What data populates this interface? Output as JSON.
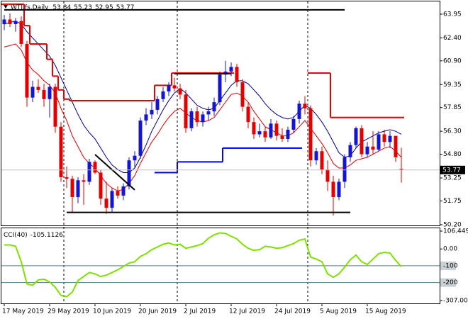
{
  "chart_data": [
    {
      "type": "candlestick",
      "title": "WTI.fs,Daily",
      "categories": [
        "17 May 2019",
        null,
        null,
        null,
        null,
        null,
        null,
        null,
        "29 May 2019",
        null,
        null,
        null,
        null,
        null,
        null,
        null,
        "10 Jun 2019",
        null,
        null,
        null,
        null,
        null,
        null,
        null,
        "20 Jun 2019",
        null,
        null,
        null,
        null,
        null,
        null,
        null,
        "2 Jul 2019",
        null,
        null,
        null,
        null,
        null,
        null,
        null,
        "12 Jul 2019",
        null,
        null,
        null,
        null,
        null,
        null,
        null,
        "24 Jul 2019",
        null,
        null,
        null,
        null,
        null,
        null,
        null,
        "5 Aug 2019",
        null,
        null,
        null,
        null,
        null,
        null,
        null,
        "15 Aug 2019",
        null,
        null,
        null,
        null,
        null,
        null
      ],
      "open": [
        63.3,
        63.6,
        63.3,
        63.5,
        62.0,
        58.5,
        59.2,
        59.0,
        58.4,
        59.2,
        56.6,
        53.3,
        53.2,
        52.0,
        53.1,
        53.0,
        54.3,
        53.6,
        51.9,
        51.3,
        52.4,
        52.1,
        52.7,
        54.4,
        54.7,
        57.0,
        57.4,
        57.7,
        58.4,
        58.9,
        59.3,
        59.1,
        58.7,
        56.5,
        57.6,
        56.9,
        57.4,
        57.6,
        58.2,
        60.0,
        60.2,
        60.5,
        59.5,
        57.9,
        56.9,
        56.1,
        56.3,
        55.9,
        56.8,
        56.0,
        55.8,
        56.4,
        57.1,
        58.1,
        57.8,
        54.4,
        55.0,
        53.8,
        53.0,
        52.0,
        53.0,
        54.6,
        55.4,
        56.5,
        54.8,
        55.3,
        55.1,
        56.1,
        55.6,
        56.0,
        53.84
      ],
      "high": [
        63.9,
        64.0,
        63.7,
        63.8,
        62.2,
        59.6,
        59.7,
        59.4,
        59.4,
        59.4,
        56.9,
        54.0,
        53.4,
        53.3,
        53.5,
        54.5,
        54.4,
        53.8,
        53.0,
        52.6,
        52.7,
        52.9,
        54.6,
        55.0,
        57.2,
        57.8,
        58.2,
        58.6,
        59.2,
        59.5,
        59.8,
        59.4,
        59.0,
        57.8,
        57.9,
        57.6,
        57.9,
        58.5,
        60.2,
        60.9,
        60.8,
        60.7,
        59.7,
        58.2,
        57.2,
        56.8,
        56.6,
        57.1,
        57.0,
        56.5,
        56.6,
        57.3,
        58.3,
        58.6,
        58.0,
        55.2,
        55.3,
        54.4,
        53.4,
        53.2,
        54.8,
        55.6,
        56.6,
        56.7,
        55.6,
        56.3,
        56.3,
        56.4,
        56.3,
        56.0,
        55.23
      ],
      "low": [
        62.9,
        63.1,
        62.8,
        61.8,
        57.9,
        58.2,
        58.8,
        57.9,
        57.2,
        56.2,
        53.0,
        52.6,
        51.0,
        51.6,
        51.5,
        52.8,
        53.5,
        51.5,
        50.9,
        51.0,
        51.9,
        51.8,
        52.5,
        53.9,
        54.5,
        56.7,
        57.1,
        57.4,
        58.2,
        58.6,
        58.9,
        58.4,
        56.2,
        56.3,
        56.6,
        56.6,
        57.0,
        57.3,
        58.0,
        59.5,
        59.9,
        59.2,
        57.6,
        56.5,
        55.8,
        55.9,
        55.6,
        55.8,
        55.7,
        55.6,
        55.6,
        56.2,
        56.8,
        57.4,
        54.0,
        54.1,
        53.5,
        52.4,
        50.8,
        51.8,
        52.6,
        54.3,
        55.2,
        54.6,
        54.6,
        54.8,
        55.0,
        55.3,
        55.2,
        54.3,
        52.95
      ],
      "close": [
        63.6,
        63.3,
        63.5,
        62.0,
        58.5,
        59.2,
        59.0,
        58.4,
        59.2,
        56.6,
        53.3,
        53.2,
        52.0,
        53.1,
        53.0,
        54.3,
        53.6,
        51.9,
        51.3,
        52.4,
        52.1,
        52.7,
        54.4,
        54.7,
        57.0,
        57.4,
        57.7,
        58.4,
        58.9,
        59.3,
        59.1,
        58.7,
        56.5,
        57.6,
        56.9,
        57.4,
        57.6,
        58.2,
        60.0,
        60.2,
        60.5,
        59.5,
        57.9,
        56.9,
        56.1,
        56.3,
        55.9,
        56.8,
        56.0,
        55.8,
        56.4,
        57.1,
        58.1,
        57.8,
        54.4,
        55.0,
        53.8,
        53.0,
        52.0,
        53.0,
        54.6,
        55.4,
        56.5,
        54.8,
        55.3,
        55.1,
        56.1,
        55.6,
        56.0,
        54.6,
        53.77
      ],
      "up_color": "#1414d2",
      "down_color": "#e00000",
      "ylim": [
        50.15,
        64.78
      ],
      "yticks": [
        63.95,
        {
          "value": 62.4,
          "label": "62.40"
        },
        {
          "value": 60.9,
          "label": "60.90"
        },
        59.35,
        57.85,
        {
          "value": 56.3,
          "label": "56.30"
        },
        {
          "value": 54.8,
          "label": "54.80"
        },
        53.25,
        51.75,
        {
          "value": 50.2,
          "label": "50.20"
        }
      ],
      "grid": false,
      "series": [
        {
          "style": "line",
          "color": "#e00000",
          "values": [
            61.8,
            61.9,
            62.0,
            61.6,
            60.8,
            60.3,
            60.0,
            59.6,
            59.3,
            58.8,
            57.8,
            57.0,
            56.0,
            55.3,
            54.6,
            54.2,
            53.9,
            53.4,
            52.9,
            52.6,
            52.4,
            52.5,
            52.9,
            53.4,
            54.2,
            54.9,
            55.6,
            56.1,
            56.7,
            57.2,
            57.6,
            57.8,
            57.5,
            57.2,
            57.0,
            56.9,
            57.0,
            57.2,
            57.7,
            58.2,
            58.7,
            58.8,
            58.6,
            58.2,
            57.6,
            57.1,
            56.6,
            56.4,
            56.2,
            56.0,
            56.0,
            56.2,
            56.6,
            57.0,
            56.5,
            56.0,
            55.5,
            54.9,
            54.2,
            53.9,
            53.9,
            54.1,
            54.4,
            54.5,
            54.6,
            54.8,
            55.0,
            55.2,
            55.3,
            55.0,
            54.6
          ]
        },
        {
          "style": "line",
          "color": "#00008b",
          "values": [
            63.3,
            63.4,
            63.5,
            63.3,
            62.8,
            62.4,
            62.0,
            61.6,
            61.2,
            60.6,
            59.8,
            59.0,
            58.2,
            57.4,
            56.7,
            56.2,
            55.8,
            55.2,
            54.6,
            54.1,
            53.8,
            53.6,
            53.6,
            53.9,
            54.6,
            55.4,
            56.3,
            57.0,
            57.7,
            58.3,
            58.8,
            59.1,
            58.8,
            58.4,
            58.0,
            57.8,
            57.7,
            57.8,
            58.3,
            58.8,
            59.3,
            59.6,
            59.6,
            59.4,
            59.0,
            58.6,
            58.1,
            57.7,
            57.4,
            57.2,
            57.1,
            57.2,
            57.6,
            58.0,
            57.8,
            57.4,
            56.9,
            56.3,
            55.6,
            54.9,
            54.6,
            54.7,
            55.2,
            55.6,
            55.8,
            56.0,
            56.2,
            56.3,
            56.4,
            56.3,
            56.1
          ]
        },
        {
          "style": "step",
          "color": "#e00000",
          "values": [
            64.6,
            64.6,
            64.6,
            64.6,
            63.2,
            62.0,
            62.0,
            62.0,
            61.0,
            59.9,
            59.0,
            58.4,
            58.3,
            58.3,
            58.3,
            58.3,
            58.3,
            58.3,
            58.3,
            58.3,
            58.3,
            58.3,
            58.3,
            58.3,
            58.3,
            58.3,
            58.3,
            59.3,
            59.3,
            59.3,
            60.1,
            60.1,
            60.1,
            60.1,
            60.1,
            60.1,
            60.1,
            60.1,
            60.1,
            60.1,
            60.1,
            null,
            null,
            null,
            null,
            null,
            null,
            null,
            null,
            null,
            null,
            null,
            null,
            null,
            60.1,
            60.1,
            60.1,
            60.1,
            57.2,
            57.2,
            57.2,
            57.2,
            57.2,
            57.2,
            57.2,
            57.2,
            57.2,
            57.2,
            57.2,
            57.2,
            57.2
          ]
        },
        {
          "style": "step",
          "color": "#0000ff",
          "values": [
            null,
            null,
            null,
            null,
            null,
            null,
            null,
            null,
            null,
            null,
            null,
            null,
            null,
            null,
            null,
            null,
            null,
            null,
            null,
            null,
            null,
            null,
            null,
            null,
            null,
            null,
            null,
            53.6,
            53.6,
            53.6,
            53.6,
            54.3,
            54.3,
            54.3,
            54.3,
            54.3,
            54.3,
            54.3,
            54.3,
            55.2,
            55.2,
            55.2,
            55.2,
            55.2,
            55.2,
            55.2,
            55.2,
            55.2,
            55.2,
            55.2,
            55.2,
            55.2,
            55.2,
            null,
            null,
            null,
            null,
            null,
            null,
            null,
            null,
            null,
            null,
            null,
            null,
            null,
            null,
            null,
            null,
            null,
            null
          ]
        }
      ],
      "drawings": [
        {
          "color": "#000000",
          "x": [
            0,
            60
          ],
          "values": [
            64.23,
            64.23
          ]
        },
        {
          "color": "#000000",
          "x": [
            11,
            61
          ],
          "values": [
            51.0,
            51.0
          ]
        },
        {
          "color": "#000000",
          "x": [
            16,
            23
          ],
          "values": [
            54.78,
            52.47
          ]
        },
        {
          "color": "#000000",
          "x": [
            30,
            40
          ],
          "values": [
            60.06,
            60.06
          ]
        }
      ],
      "separators": [
        11,
        31,
        54
      ]
    },
    {
      "type": "line",
      "title": "CCI(40)",
      "series": [
        {
          "color": "#7fe000",
          "values": [
            24,
            24,
            16,
            -76,
            -208,
            -216,
            -184,
            -180,
            -196,
            -228,
            -276,
            -284,
            -256,
            -188,
            -164,
            -140,
            -148,
            -164,
            -156,
            -140,
            -124,
            -104,
            -84,
            -76,
            -44,
            -28,
            -4,
            12,
            28,
            36,
            24,
            28,
            4,
            12,
            20,
            32,
            64,
            84,
            96,
            92,
            76,
            60,
            28,
            4,
            -8,
            -4,
            16,
            12,
            4,
            8,
            20,
            32,
            52,
            60,
            -48,
            -60,
            -76,
            -148,
            -168,
            -148,
            -108,
            -64,
            -36,
            -76,
            -92,
            -60,
            -28,
            -20,
            -24,
            -68,
            -105.1126
          ]
        }
      ],
      "ylim": [
        -307,
        106.4497
      ],
      "yticks": [
        106.4497,
        {
          "value": 0,
          "label": "0.00"
        },
        -100,
        -200,
        {
          "value": -307,
          "label": "-307.000"
        }
      ],
      "levels": [
        -100,
        -200
      ],
      "level_color": "#4a8090"
    }
  ]
}
